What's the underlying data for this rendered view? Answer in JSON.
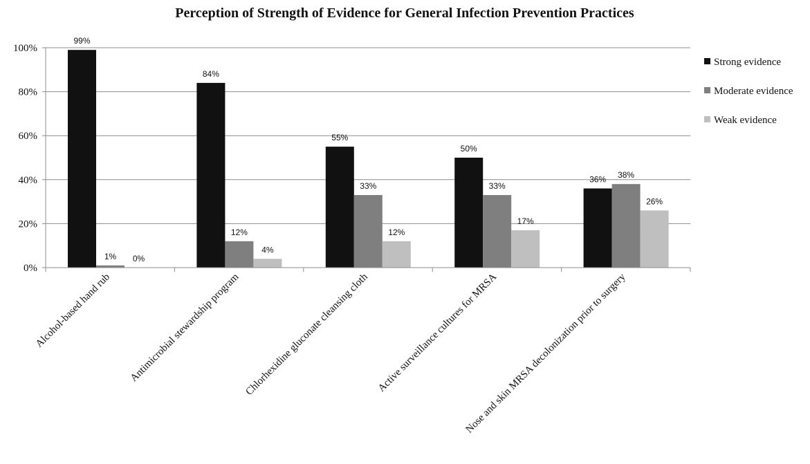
{
  "chart_data": {
    "type": "bar",
    "title": "Perception of Strength of Evidence for General Infection Prevention Practices",
    "categories": [
      "Alcohol-based hand rub",
      "Antimicrobial stewardship program",
      "Chlorhexidine gluconate cleansing cloth",
      "Active surveillance cultures for MRSA",
      "Nose and skin MRSA decolonization prior to surgery"
    ],
    "series": [
      {
        "name": "Strong evidence",
        "color": "#111111",
        "values": [
          99,
          84,
          55,
          50,
          36
        ],
        "labels": [
          "99%",
          "84%",
          "55%",
          "50%",
          "36%"
        ]
      },
      {
        "name": "Moderate evidence",
        "color": "#7f7f7f",
        "values": [
          1,
          12,
          33,
          33,
          38
        ],
        "labels": [
          "1%",
          "12%",
          "33%",
          "33%",
          "38%"
        ]
      },
      {
        "name": "Weak evidence",
        "color": "#bfbfbf",
        "values": [
          0,
          4,
          12,
          17,
          26
        ],
        "labels": [
          "0%",
          "4%",
          "12%",
          "17%",
          "26%"
        ]
      }
    ],
    "ylim": [
      0,
      100
    ],
    "yticks": [
      "0%",
      "20%",
      "40%",
      "60%",
      "80%",
      "100%"
    ],
    "grid": true,
    "legend_position": "right"
  }
}
